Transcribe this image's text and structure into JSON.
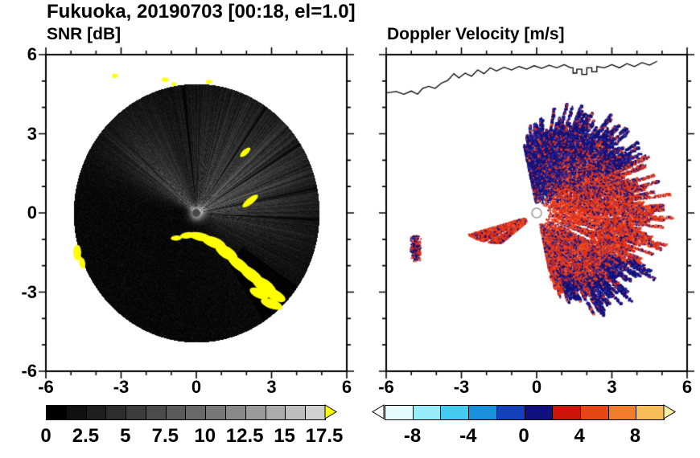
{
  "header": {
    "title": "Fukuoka, 20190703 [00:18, el=1.0]"
  },
  "palette": {
    "yellow": "#ffff00",
    "navy": "#12127a",
    "navy2": "#2a2aa8",
    "red": "#e23119",
    "red2": "#f25a2e",
    "coast_left": "#ffffff",
    "coast_right": "#000000",
    "frame": "#000000"
  },
  "coastline": [
    [
      -6,
      4.55
    ],
    [
      -5.6,
      4.6
    ],
    [
      -5.3,
      4.5
    ],
    [
      -5.0,
      4.62
    ],
    [
      -4.75,
      4.5
    ],
    [
      -4.55,
      4.72
    ],
    [
      -4.3,
      4.8
    ],
    [
      -4.05,
      4.72
    ],
    [
      -3.8,
      4.92
    ],
    [
      -3.55,
      5.02
    ],
    [
      -3.3,
      5.28
    ],
    [
      -3.1,
      5.12
    ],
    [
      -2.85,
      5.3
    ],
    [
      -2.6,
      5.18
    ],
    [
      -2.35,
      5.42
    ],
    [
      -2.1,
      5.28
    ],
    [
      -1.85,
      5.5
    ],
    [
      -1.6,
      5.38
    ],
    [
      -1.3,
      5.52
    ],
    [
      -1.0,
      5.42
    ],
    [
      -0.7,
      5.55
    ],
    [
      -0.4,
      5.45
    ],
    [
      -0.1,
      5.58
    ],
    [
      0.2,
      5.48
    ],
    [
      0.5,
      5.6
    ],
    [
      0.8,
      5.5
    ],
    [
      1.1,
      5.62
    ],
    [
      1.35,
      5.5
    ],
    [
      1.45,
      5.5
    ],
    [
      1.45,
      5.3
    ],
    [
      1.6,
      5.3
    ],
    [
      1.6,
      5.45
    ],
    [
      1.8,
      5.45
    ],
    [
      1.8,
      5.25
    ],
    [
      2.0,
      5.25
    ],
    [
      2.0,
      5.5
    ],
    [
      2.2,
      5.5
    ],
    [
      2.2,
      5.35
    ],
    [
      2.4,
      5.35
    ],
    [
      2.4,
      5.55
    ],
    [
      2.7,
      5.5
    ],
    [
      3.0,
      5.62
    ],
    [
      3.3,
      5.5
    ],
    [
      3.6,
      5.66
    ],
    [
      3.9,
      5.55
    ],
    [
      4.2,
      5.7
    ],
    [
      4.5,
      5.6
    ],
    [
      4.8,
      5.75
    ]
  ],
  "panels": [
    {
      "title": "SNR [dB]",
      "x_ticks": [
        "-6",
        "-3",
        "0",
        "3",
        "6"
      ],
      "y_ticks": [
        "6",
        "3",
        "0",
        "-3",
        "-6"
      ],
      "colorbar": {
        "ticks": [
          "0",
          "2.5",
          "5",
          "7.5",
          "10",
          "12.5",
          "15",
          "17.5"
        ],
        "cells": [
          "#000000",
          "#101010",
          "#1e1e1e",
          "#2d2d2d",
          "#3c3c3c",
          "#4b4b4b",
          "#5a5a5a",
          "#696969",
          "#787878",
          "#898989",
          "#9a9a9a",
          "#ababab",
          "#bdbdbd",
          "#d0d0d0"
        ],
        "right_arrow": "#ffff00"
      }
    },
    {
      "title": "Doppler Velocity [m/s]",
      "x_ticks": [
        "-6",
        "-3",
        "0",
        "3",
        "6"
      ],
      "y_ticks": [],
      "colorbar": {
        "ticks": [
          "-8",
          "-4",
          "0",
          "4",
          "8"
        ],
        "cells": [
          "#e4fcff",
          "#96ecf8",
          "#44ccf0",
          "#1890dc",
          "#1440bc",
          "#10107e",
          "#cc1408",
          "#e84616",
          "#f07c2c",
          "#f8bc58"
        ],
        "left_arrow": "#ffffff",
        "right_arrow": "#fcf0a8"
      }
    }
  ],
  "chart_data": [
    {
      "type": "heatmap",
      "subtype": "radar_ppi",
      "panel": "SNR [dB]",
      "units": "dB",
      "site": "Fukuoka",
      "date": "20190703",
      "time": "00:18",
      "elevation_deg": 1.0,
      "xlim": [
        -6,
        6
      ],
      "ylim": [
        -6,
        6
      ],
      "x_tick_values": [
        -6,
        -3,
        0,
        3,
        6
      ],
      "y_tick_values": [
        6,
        3,
        0,
        -3,
        -6
      ],
      "scan_disk": {
        "center": [
          0,
          0
        ],
        "radius": 4.9,
        "background": "black (~0 dB)"
      },
      "colorbar": {
        "tick_values": [
          0,
          2.5,
          5,
          7.5,
          10,
          12.5,
          15,
          17.5
        ],
        "n_cells": 14,
        "scale": "black to light gray, yellow overflow arrow above 17.5"
      },
      "bright_sectors_deg": [
        [
          -20,
          100,
          "diffuse echo fan east-northeast, brighter toward radar"
        ],
        [
          113,
          155,
          "northwest echo wedge with radial streaks"
        ],
        [
          198,
          212,
          "narrow bright rays to west-southwest"
        ]
      ],
      "dark_rays_deg": [
        -3,
        12,
        34,
        57,
        96
      ],
      "shadow_sector_deg": [
        -58,
        -36
      ],
      "clutter": [
        [
          0.15,
          -0.9,
          0.45,
          0.16,
          -12
        ],
        [
          0.7,
          -1.12,
          0.5,
          0.2,
          -20
        ],
        [
          1.2,
          -1.5,
          0.5,
          0.22,
          -32
        ],
        [
          1.7,
          -1.95,
          0.55,
          0.2,
          -38
        ],
        [
          2.2,
          -2.35,
          0.6,
          0.22,
          -38
        ],
        [
          2.7,
          -2.75,
          0.55,
          0.24,
          -34
        ],
        [
          3.1,
          -3.1,
          0.5,
          0.2,
          -28
        ],
        [
          2.5,
          -3.05,
          0.4,
          0.18,
          -25
        ],
        [
          3.0,
          -3.45,
          0.45,
          0.18,
          -20
        ],
        [
          -0.35,
          -0.85,
          0.3,
          0.12,
          8
        ],
        [
          -0.8,
          -0.95,
          0.22,
          0.1,
          4
        ],
        [
          2.15,
          0.45,
          0.38,
          0.12,
          38
        ],
        [
          1.95,
          2.3,
          0.26,
          0.1,
          42
        ],
        [
          -4.75,
          -1.5,
          0.16,
          0.3,
          0
        ],
        [
          -4.55,
          -1.9,
          0.12,
          0.22,
          10
        ],
        [
          -3.25,
          5.2,
          0.12,
          0.08,
          0
        ],
        [
          -1.25,
          5.05,
          0.14,
          0.08,
          0
        ],
        [
          -0.9,
          4.88,
          0.1,
          0.07,
          0
        ],
        [
          0.5,
          4.97,
          0.12,
          0.08,
          0
        ]
      ]
    },
    {
      "type": "heatmap",
      "subtype": "radar_ppi",
      "panel": "Doppler Velocity [m/s]",
      "units": "m/s",
      "xlim": [
        -6,
        6
      ],
      "ylim": [
        -6,
        6
      ],
      "x_tick_values": [
        -6,
        -3,
        0,
        3,
        6
      ],
      "colorbar": {
        "tick_values": [
          -8,
          -4,
          0,
          4,
          8
        ],
        "range": [
          -10,
          10
        ],
        "scale": "pale cyan to navy for negative, red to orange for positive, arrows at both ends"
      },
      "echo_fan_deg": [
        -78,
        102
      ],
      "echo_max_radius": 4.7,
      "dominant_colors": {
        "negative_velocity": "navy",
        "positive_velocity": "red"
      },
      "sidelobe_streaks_deg": [
        196,
        218
      ],
      "isolated_patch_center": [
        -4.85,
        -1.3
      ]
    }
  ]
}
